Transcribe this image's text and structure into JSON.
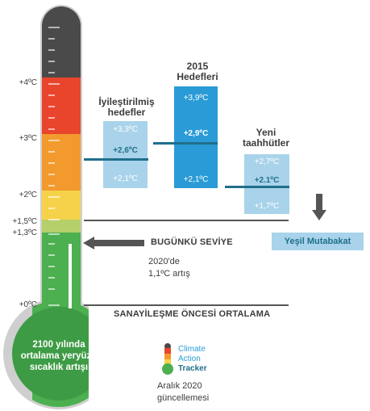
{
  "colors": {
    "dark": "#4a4a4a",
    "red": "#e8452c",
    "orange": "#f39a2e",
    "yellow": "#f6d24a",
    "lightgreen": "#b5cf6a",
    "green": "#4caf50",
    "boxLight": "#a9d3ea",
    "boxMid": "#2a9bd6",
    "line": "#1f6f8b"
  },
  "scale": {
    "ticks": [
      {
        "label": "+4ºC"
      },
      {
        "label": "+3ºC"
      },
      {
        "label": "+2ºC"
      },
      {
        "label": "+1,5ºC"
      },
      {
        "label": "+1,3ºC"
      },
      {
        "label": "+0ºC"
      }
    ]
  },
  "bulb": {
    "line1": "2100 yılında",
    "line2": "ortalama yeryüzü",
    "line3": "sıcaklık artışı"
  },
  "columns": {
    "improved": {
      "title1": "İyileştirilmiş",
      "title2": "hedefler",
      "high": "+3,3ºC",
      "mid": "+2,6ºC",
      "low": "+2,1ºC"
    },
    "targets2015": {
      "title1": "2015",
      "title2": "Hedefleri",
      "high": "+3,9ºC",
      "mid": "+2,9ºC",
      "low": "+2,1ºC"
    },
    "newPledges": {
      "title1": "Yeni",
      "title2": "taahhütler",
      "high": "+2,7ºC",
      "mid": "+2.1ºC",
      "low": "+1,7ºC"
    }
  },
  "green_agreement": "Yeşil Mutabakat",
  "current_level": {
    "label": "BUGÜNKÜ SEVİYE",
    "note1": "2020'de",
    "note2": "1,1ºC artış"
  },
  "preindustrial": "SANAYİLEŞME ÖNCESİ ORTALAMA",
  "logo": {
    "line1": "Climate",
    "line2": "Action",
    "line3": "Tracker"
  },
  "update": {
    "line1": "Aralık 2020",
    "line2": "güncellemesi"
  }
}
